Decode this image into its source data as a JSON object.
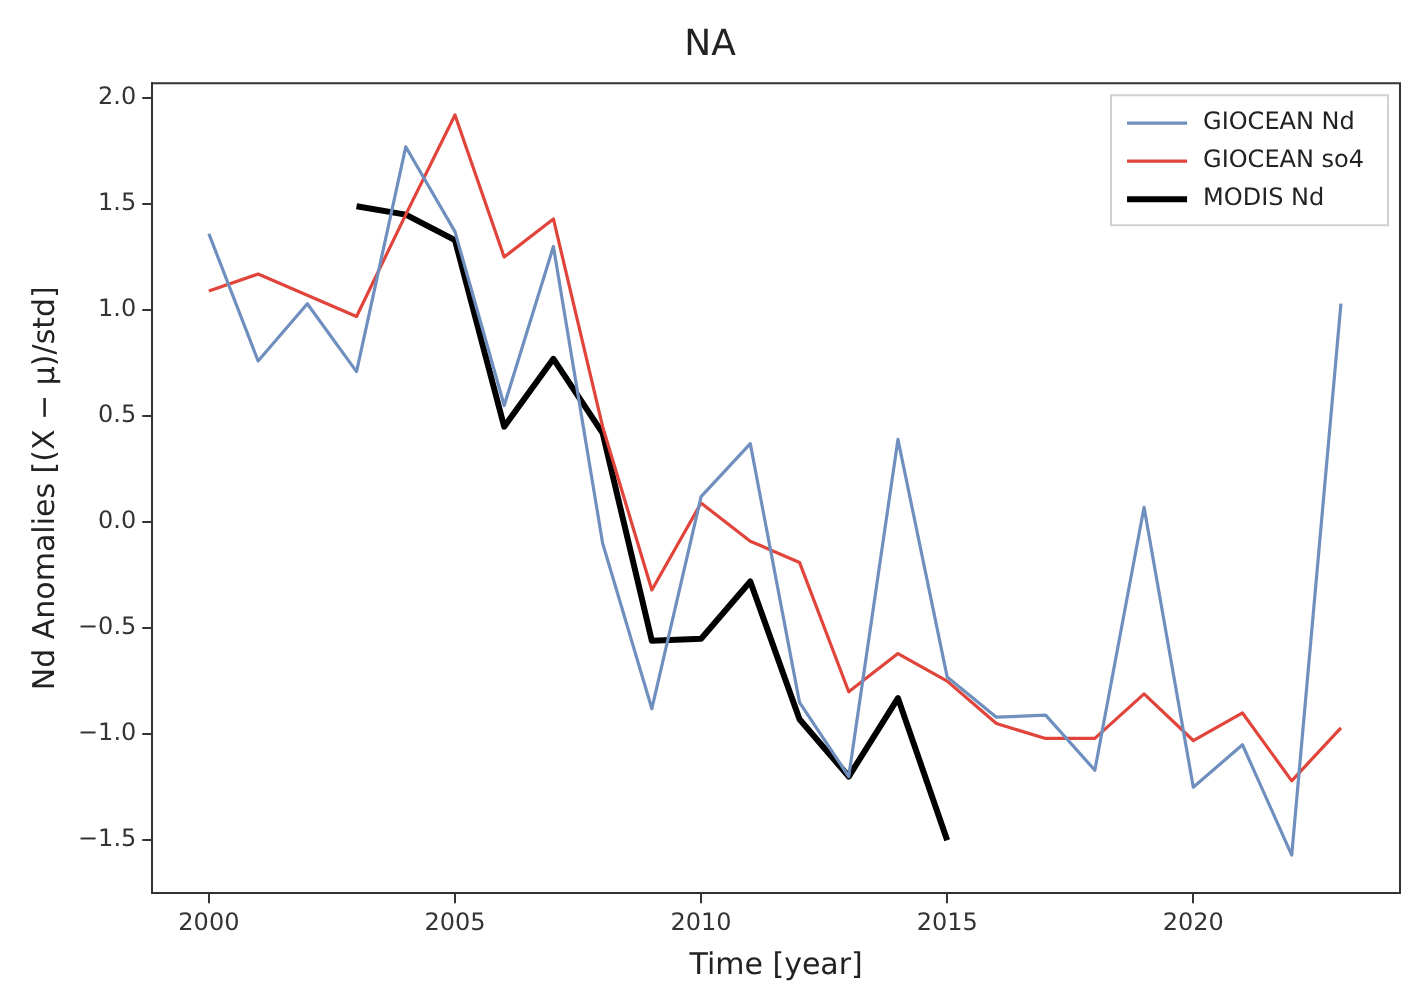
{
  "chart_data": {
    "type": "line",
    "title": "NA",
    "xlabel": "Time [year]",
    "ylabel": "Nd Anomalies [(X − μ)/std]",
    "xlim": [
      1998.85,
      2024.2
    ],
    "xticks": [
      2000,
      2005,
      2010,
      2015,
      2020
    ],
    "ylim": [
      -1.75,
      2.07
    ],
    "yticks": [
      -1.5,
      {
        "value": -1,
        "label": "−1.0"
      },
      -0.5,
      {
        "value": 0,
        "label": "0.0"
      },
      0.5,
      {
        "value": 1,
        "label": "1.0"
      },
      1.5,
      {
        "value": 2,
        "label": "2.0"
      }
    ],
    "grid": false,
    "legend": "top right",
    "marker": "none",
    "line_style": "solid",
    "series": [
      {
        "name": "GIOCEAN Nd",
        "color": "#6f8fbf",
        "x": [
          2000,
          2001,
          2002,
          2003,
          2004,
          2005,
          2006,
          2007,
          2008,
          2009,
          2010,
          2011,
          2012,
          2013,
          2014,
          2015,
          2016,
          2017,
          2018,
          2019,
          2020,
          2021,
          2022,
          2023
        ],
        "values": [
          1.36,
          0.76,
          1.03,
          0.71,
          1.77,
          1.37,
          0.55,
          1.3,
          -0.1,
          -0.88,
          0.12,
          0.37,
          -0.85,
          -1.2,
          0.39,
          -0.73,
          -0.92,
          -0.91,
          -1.17,
          0.07,
          -1.25,
          -1.05,
          -1.57,
          1.03
        ]
      },
      {
        "name": "GIOCEAN so4",
        "color": "#e0443a",
        "x": [
          2000,
          2001,
          2002,
          2003,
          2004,
          2005,
          2006,
          2007,
          2008,
          2009,
          2010,
          2011,
          2012,
          2013,
          2014,
          2015,
          2016,
          2017,
          2018,
          2019,
          2020,
          2021,
          2022,
          2023
        ],
        "values": [
          1.09,
          1.17,
          1.07,
          0.97,
          1.45,
          1.92,
          1.25,
          1.43,
          0.45,
          -0.32,
          0.09,
          -0.09,
          -0.19,
          -0.8,
          -0.62,
          -0.75,
          -0.95,
          -1.02,
          -1.02,
          -0.81,
          -1.03,
          -0.9,
          -1.22,
          -0.97
        ]
      },
      {
        "name": "MODIS Nd",
        "color": "#000000",
        "x": [
          2003,
          2004,
          2005,
          2006,
          2007,
          2008,
          2009,
          2010,
          2011,
          2012,
          2013,
          2014,
          2015
        ],
        "values": [
          1.49,
          1.45,
          1.33,
          0.45,
          0.77,
          0.42,
          -0.56,
          -0.55,
          -0.28,
          -0.93,
          -1.2,
          -0.83,
          -1.5
        ]
      }
    ]
  }
}
